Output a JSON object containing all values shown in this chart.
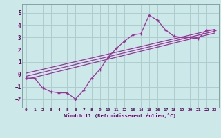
{
  "xlabel": "Windchill (Refroidissement éolien,°C)",
  "bg_color": "#cce8e8",
  "grid_color": "#aacece",
  "line_color": "#993399",
  "xlim": [
    -0.5,
    23.5
  ],
  "ylim": [
    -2.7,
    5.7
  ],
  "xticks": [
    0,
    1,
    2,
    3,
    4,
    5,
    6,
    7,
    8,
    9,
    10,
    11,
    12,
    13,
    14,
    15,
    16,
    17,
    18,
    19,
    20,
    21,
    22,
    23
  ],
  "yticks": [
    -2,
    -1,
    0,
    1,
    2,
    3,
    4,
    5
  ],
  "main_x": [
    0,
    1,
    2,
    3,
    4,
    5,
    6,
    7,
    8,
    9,
    10,
    11,
    12,
    13,
    14,
    15,
    16,
    17,
    18,
    19,
    20,
    21,
    22,
    23
  ],
  "main_y": [
    -0.3,
    -0.3,
    -1.1,
    -1.4,
    -1.5,
    -1.5,
    -2.0,
    -1.3,
    -0.3,
    0.4,
    1.4,
    2.1,
    2.7,
    3.2,
    3.3,
    4.8,
    4.4,
    3.6,
    3.1,
    3.0,
    3.0,
    2.9,
    3.6,
    3.6
  ],
  "line1_x": [
    0,
    23
  ],
  "line1_y": [
    -0.4,
    3.35
  ],
  "line2_x": [
    0,
    23
  ],
  "line2_y": [
    -0.15,
    3.5
  ],
  "line3_x": [
    0,
    23
  ],
  "line3_y": [
    0.1,
    3.65
  ]
}
